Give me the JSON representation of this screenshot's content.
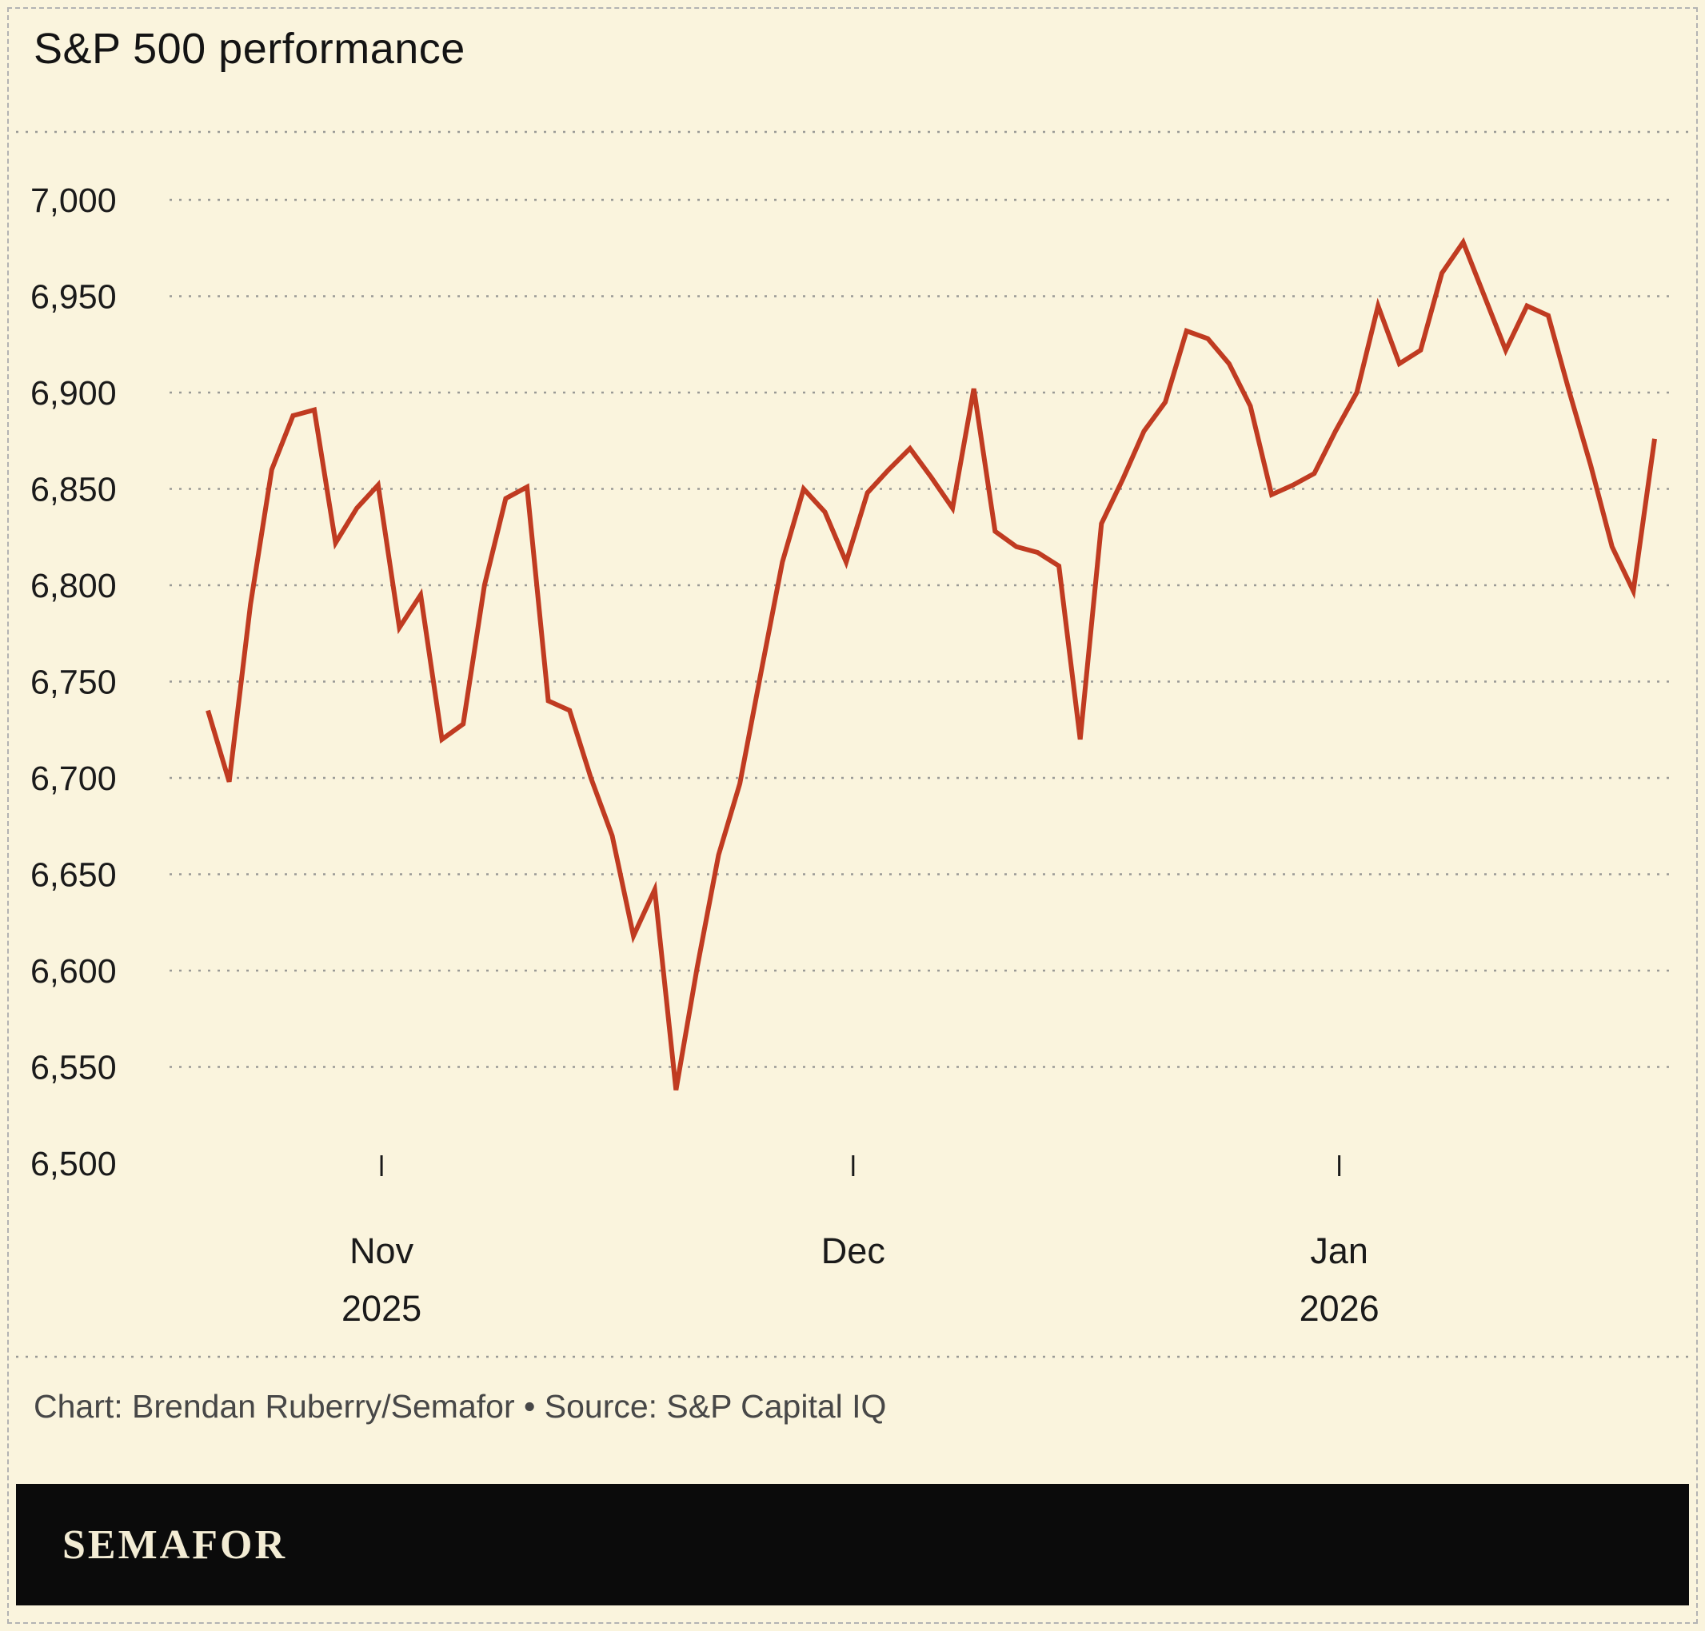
{
  "header": {
    "title": "S&P 500 performance"
  },
  "footer": {
    "credit": "Chart: Brendan Ruberry/Semafor • Source: S&P Capital IQ",
    "logo": "SEMAFOR"
  },
  "colors": {
    "background": "#faf4dd",
    "line": "#c03b21",
    "brand_bar": "#0b0b0b",
    "logo_text": "#f3ecd4",
    "gridline": "#9a9a96"
  },
  "chart_data": {
    "type": "line",
    "title": "S&P 500 performance",
    "xlabel": "",
    "ylabel": "",
    "ylim": [
      6500,
      7000
    ],
    "ytick_step": 50,
    "ytick_labels": [
      "6,500",
      "6,550",
      "6,600",
      "6,650",
      "6,700",
      "6,750",
      "6,800",
      "6,850",
      "6,900",
      "6,950",
      "7,000"
    ],
    "grid": "horizontal-dashed",
    "legend": "none",
    "xticks": [
      {
        "pos": 0.12,
        "label": "Nov",
        "sublabel": "2025"
      },
      {
        "pos": 0.446,
        "label": "Dec",
        "sublabel": ""
      },
      {
        "pos": 0.782,
        "label": "Jan",
        "sublabel": "2026"
      }
    ],
    "series": [
      {
        "name": "S&P 500",
        "color": "#c03b21",
        "values": [
          6735,
          6698,
          6790,
          6860,
          6888,
          6891,
          6822,
          6840,
          6852,
          6778,
          6795,
          6720,
          6728,
          6800,
          6845,
          6851,
          6740,
          6735,
          6700,
          6670,
          6618,
          6642,
          6538,
          6602,
          6660,
          6697,
          6755,
          6812,
          6850,
          6838,
          6812,
          6848,
          6860,
          6871,
          6856,
          6840,
          6902,
          6828,
          6820,
          6817,
          6810,
          6720,
          6832,
          6855,
          6880,
          6895,
          6932,
          6928,
          6915,
          6893,
          6847,
          6852,
          6858,
          6880,
          6900,
          6945,
          6915,
          6922,
          6962,
          6978,
          6950,
          6922,
          6945,
          6940,
          6900,
          6862,
          6820,
          6797,
          6876
        ]
      }
    ]
  }
}
